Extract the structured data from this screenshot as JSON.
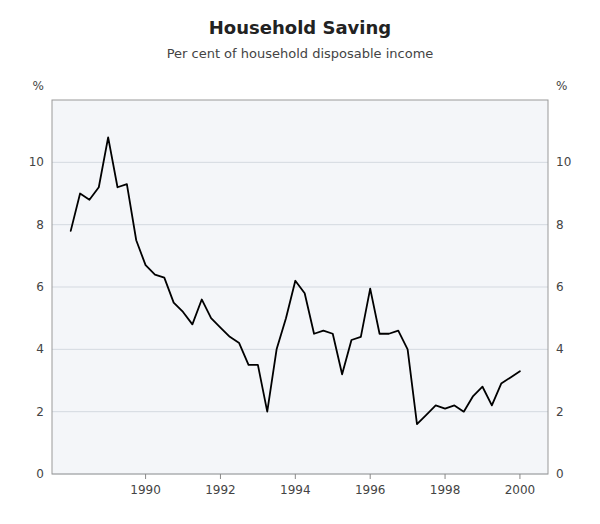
{
  "chart_data": {
    "type": "line",
    "title": "Household Saving",
    "subtitle": "Per cent of household disposable income",
    "ylabel": "%",
    "y2label": "%",
    "color": "#000000",
    "grid": true,
    "xlim": [
      1987.5,
      2000.75
    ],
    "xticks": [
      1990,
      1992,
      1994,
      1996,
      1998,
      2000
    ],
    "ylim": [
      0,
      12
    ],
    "yticks": [
      0,
      2,
      4,
      6,
      8,
      10
    ],
    "y2lim": [
      0,
      12
    ],
    "y2ticks": [
      0,
      2,
      4,
      6,
      8,
      10
    ],
    "x": [
      1988.0,
      1988.25,
      1988.5,
      1988.75,
      1989.0,
      1989.25,
      1989.5,
      1989.75,
      1990.0,
      1990.25,
      1990.5,
      1990.75,
      1991.0,
      1991.25,
      1991.5,
      1991.75,
      1992.0,
      1992.25,
      1992.5,
      1992.75,
      1993.0,
      1993.25,
      1993.5,
      1993.75,
      1994.0,
      1994.25,
      1994.5,
      1994.75,
      1995.0,
      1995.25,
      1995.5,
      1995.75,
      1996.0,
      1996.25,
      1996.5,
      1996.75,
      1997.0,
      1997.25,
      1997.5,
      1997.75,
      1998.0,
      1998.25,
      1998.5,
      1998.75,
      1999.0,
      1999.25,
      1999.5,
      1999.75,
      2000.0
    ],
    "values": [
      7.8,
      9.0,
      8.8,
      9.2,
      10.8,
      9.2,
      9.3,
      7.5,
      6.7,
      6.4,
      6.3,
      5.5,
      5.2,
      4.8,
      5.6,
      5.0,
      4.7,
      4.4,
      4.2,
      3.5,
      3.5,
      2.0,
      4.0,
      5.0,
      6.2,
      5.8,
      4.5,
      4.6,
      4.5,
      3.2,
      4.3,
      4.4,
      5.95,
      4.5,
      4.5,
      4.6,
      4.0,
      1.6,
      1.9,
      2.2,
      2.1,
      2.2,
      2.0,
      2.5,
      2.8,
      2.2,
      2.9,
      3.1,
      3.3
    ]
  }
}
